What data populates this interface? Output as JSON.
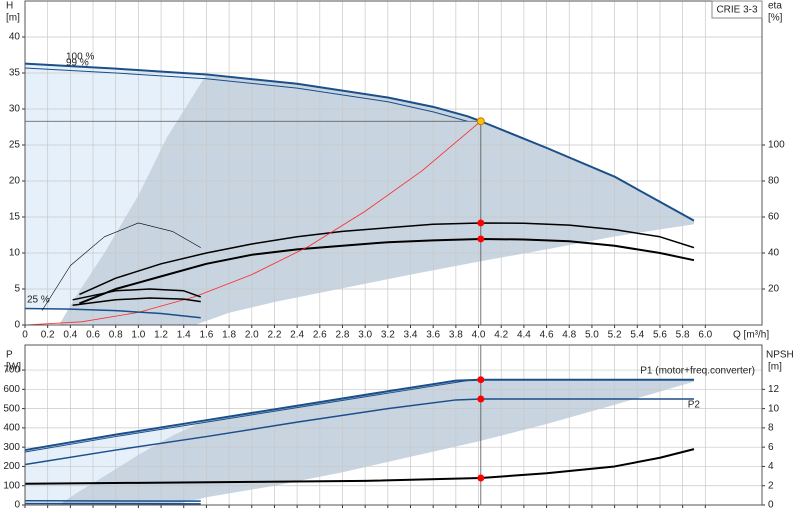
{
  "chart_data": [
    {
      "type": "line",
      "y_label": "H",
      "y_unit": "[m]",
      "y2_label": "eta",
      "y2_unit": "[%]",
      "x_label": "Q [m³/h]",
      "legend": "CRIE 3-3",
      "xlim": [
        0,
        6.5
      ],
      "xticks": [
        0,
        0.2,
        0.4,
        0.6,
        0.8,
        {
          "value": 1,
          "label": "1.0"
        },
        1.2,
        1.4,
        1.6,
        1.8,
        {
          "value": 2,
          "label": "2.0"
        },
        2.2,
        2.4,
        2.6,
        2.8,
        {
          "value": 3,
          "label": "3.0"
        },
        3.2,
        3.4,
        3.6,
        3.8,
        {
          "value": 4,
          "label": "4.0"
        },
        4.2,
        4.4,
        4.6,
        4.8,
        {
          "value": 5,
          "label": "5.0"
        },
        5.2,
        5.4,
        5.6,
        5.8,
        {
          "value": 6,
          "label": "6.0"
        }
      ],
      "ylim": [
        0,
        45
      ],
      "yticks": [
        0,
        5,
        10,
        15,
        20,
        25,
        30,
        35,
        40
      ],
      "y2lim": [
        0,
        180
      ],
      "y2ticks": [
        20,
        40,
        60,
        80,
        100
      ],
      "grid": true,
      "regions": [
        {
          "color": "#e6f0fa",
          "x": [
            0,
            0.8,
            1.6,
            1.55,
            0.8,
            0
          ],
          "values": [
            36.3,
            35.6,
            34.8,
            1.0,
            2.0,
            2.3
          ]
        },
        {
          "color": "#c8d4e0",
          "x": [
            1.6,
            2.4,
            3.2,
            3.6,
            3.9,
            4.02,
            4.6,
            5.2,
            5.9,
            5.9,
            5.2,
            4.6,
            4.0,
            3.4,
            2.8,
            2.2,
            1.8,
            1.5,
            0.3,
            0.45,
            0.7,
            1.0,
            1.25
          ],
          "values": [
            34.8,
            33.5,
            31.6,
            30.3,
            29.0,
            28.3,
            24.6,
            20.6,
            14.5,
            14.0,
            12.3,
            10.5,
            8.8,
            7.0,
            5.1,
            3.2,
            1.7,
            0,
            0,
            4,
            10,
            18,
            26
          ]
        }
      ],
      "series": [
        {
          "name": "100 %",
          "color": "#1a4f8a",
          "width": 2,
          "x": [
            0,
            0.8,
            1.6,
            2.4,
            3.2,
            3.6,
            3.9,
            4.02,
            4.6,
            5.2,
            5.9
          ],
          "values": [
            36.3,
            35.6,
            34.8,
            33.5,
            31.6,
            30.3,
            29.0,
            28.3,
            24.6,
            20.6,
            14.5
          ]
        },
        {
          "name": "99 %",
          "color": "#1a4f8a",
          "width": 1,
          "x": [
            0,
            0.8,
            1.6,
            2.4,
            3.2,
            3.6,
            3.9
          ],
          "values": [
            35.7,
            35.0,
            34.2,
            32.9,
            31.0,
            29.6,
            28.3
          ]
        },
        {
          "color": "#000000",
          "width": 1.5,
          "axis": "y2",
          "x": [
            0.48,
            0.8,
            1.2,
            1.6,
            2.0,
            2.4,
            2.8,
            3.2,
            3.6,
            4.02,
            4.4,
            4.8,
            5.2,
            5.6,
            5.9
          ],
          "values": [
            17,
            26,
            34,
            40,
            45,
            49,
            52,
            54,
            56,
            56.7,
            56.5,
            55.5,
            53,
            49,
            43
          ]
        },
        {
          "color": "#000000",
          "width": 2,
          "axis": "y2",
          "x": [
            0.48,
            0.8,
            1.2,
            1.6,
            2.0,
            2.4,
            2.8,
            3.2,
            3.6,
            4.02,
            4.4,
            4.8,
            5.2,
            5.6,
            5.9
          ],
          "values": [
            12,
            20,
            27,
            34,
            39,
            42,
            44,
            46,
            47,
            47.8,
            47.5,
            46.5,
            44,
            40,
            36
          ]
        },
        {
          "color": "#ff2a2a",
          "width": 0.8,
          "x": [
            0,
            0.5,
            1,
            1.5,
            2,
            2.5,
            3,
            3.5,
            4.02
          ],
          "values": [
            0,
            0.44,
            1.75,
            3.94,
            7.0,
            10.9,
            15.8,
            21.4,
            28.3
          ]
        },
        {
          "name": "25 %",
          "color": "#1a4f8a",
          "width": 1.5,
          "x": [
            0,
            0.4,
            0.8,
            1.2,
            1.55
          ],
          "values": [
            2.3,
            2.2,
            2.0,
            1.6,
            1.0
          ]
        },
        {
          "color": "#000000",
          "width": 1.5,
          "axis": "y2",
          "x": [
            0.42,
            0.8,
            1.1,
            1.4,
            1.55
          ],
          "values": [
            14,
            19,
            20,
            19,
            15.6
          ]
        },
        {
          "color": "#000000",
          "width": 1.5,
          "axis": "y2",
          "x": [
            0.42,
            0.8,
            1.1,
            1.4,
            1.55
          ],
          "values": [
            11,
            14,
            15,
            14.4,
            13
          ]
        },
        {
          "color": "#000000",
          "width": 0.6,
          "axis": "y2",
          "x": [
            0.15,
            0.4,
            0.7,
            1.0,
            1.3,
            1.55
          ],
          "values": [
            8,
            33,
            49,
            56.7,
            52,
            43
          ]
        },
        {
          "color": "#ffc000",
          "marker": true,
          "x": [
            4.02
          ],
          "values": [
            28.3
          ]
        },
        {
          "color": "#ff0000",
          "marker": true,
          "axis": "y2",
          "x": [
            4.02,
            4.02
          ],
          "values": [
            56.7,
            47.8
          ]
        }
      ]
    },
    {
      "type": "line",
      "y_label": "P",
      "y_unit": "[W]",
      "y2_label": "NPSH",
      "y2_unit": "[m]",
      "ylim": [
        0,
        830
      ],
      "yticks": [
        0,
        100,
        200,
        300,
        400,
        500,
        600,
        700
      ],
      "y2lim": [
        0,
        16.6
      ],
      "y2ticks": [
        0,
        2,
        4,
        6,
        8,
        10,
        12
      ],
      "grid": true,
      "regions": [
        {
          "color": "#e6f0fa",
          "x": [
            0,
            0.8,
            1.6,
            1.55,
            0
          ],
          "values": [
            285,
            365,
            440,
            22,
            22
          ]
        },
        {
          "color": "#c8d4e0",
          "x": [
            1.6,
            2.4,
            3.2,
            3.8,
            4.02,
            4.6,
            5.2,
            5.9,
            5.9,
            5.2,
            4.6,
            4.0,
            3.4,
            2.8,
            2.2,
            1.6,
            1.3,
            0.3,
            0.45,
            0.7,
            1.0,
            1.3
          ],
          "values": [
            440,
            515,
            590,
            645,
            650,
            650,
            650,
            650,
            640,
            520,
            420,
            330,
            250,
            170,
            100,
            40,
            0,
            0,
            60,
            150,
            260,
            360
          ]
        }
      ],
      "series": [
        {
          "name": "P1 (motor+freq.converter)",
          "color": "#1a4f8a",
          "width": 2,
          "x": [
            0,
            0.8,
            1.6,
            2.4,
            3.2,
            3.8,
            4.02,
            4.6,
            5.2,
            5.9
          ],
          "values": [
            285,
            365,
            440,
            515,
            590,
            645,
            650,
            650,
            650,
            650
          ]
        },
        {
          "color": "#1a4f8a",
          "width": 1,
          "x": [
            0,
            0.8,
            1.6,
            2.4,
            3.2,
            3.9
          ],
          "values": [
            275,
            355,
            430,
            505,
            580,
            645
          ]
        },
        {
          "name": "P2",
          "color": "#1a4f8a",
          "width": 1.5,
          "x": [
            0,
            0.8,
            1.6,
            2.4,
            3.2,
            3.8,
            4.02,
            4.6,
            5.2,
            5.9
          ],
          "values": [
            210,
            285,
            355,
            430,
            500,
            545,
            550,
            550,
            550,
            550
          ]
        },
        {
          "color": "#000000",
          "width": 2,
          "axis": "y2",
          "x": [
            0,
            1.0,
            2.0,
            3.0,
            4.02,
            4.6,
            5.2,
            5.6,
            5.9
          ],
          "values": [
            2.2,
            2.3,
            2.4,
            2.5,
            2.8,
            3.3,
            4.0,
            4.9,
            5.8
          ]
        },
        {
          "color": "#1a4f8a",
          "width": 1.5,
          "x": [
            0,
            1.55
          ],
          "values": [
            22,
            20
          ]
        },
        {
          "color": "#1a4f8a",
          "width": 1.5,
          "x": [
            0,
            1.55
          ],
          "values": [
            8,
            6
          ]
        },
        {
          "color": "#ff0000",
          "marker": true,
          "x": [
            4.02,
            4.02
          ],
          "values": [
            650,
            550
          ]
        },
        {
          "color": "#ff0000",
          "marker": true,
          "axis": "y2",
          "x": [
            4.02
          ],
          "values": [
            2.8
          ]
        }
      ]
    }
  ]
}
